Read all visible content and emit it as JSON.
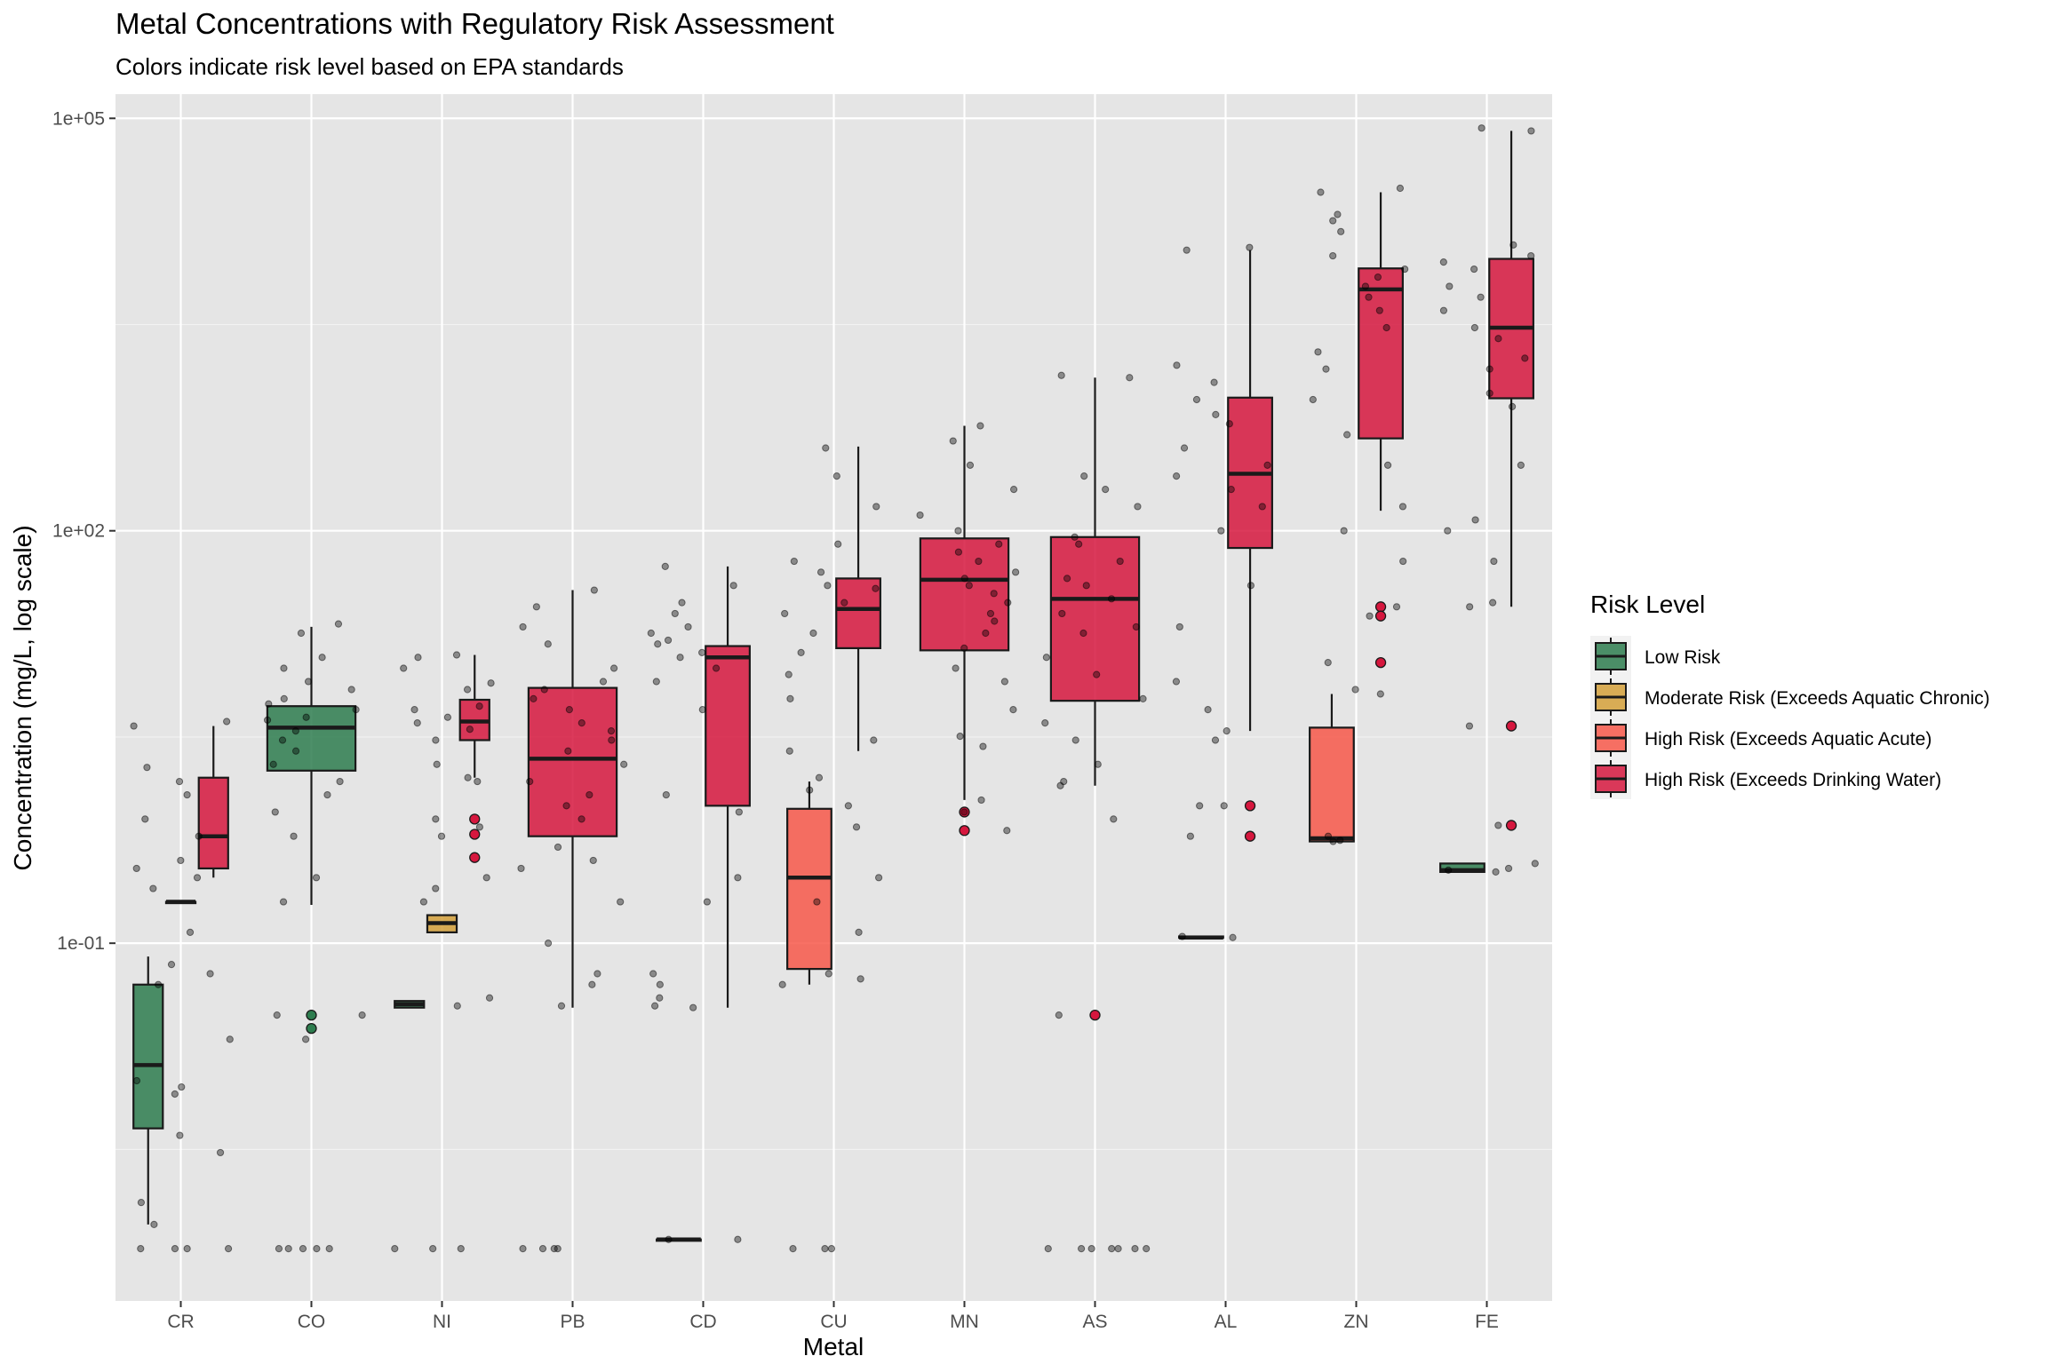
{
  "chart_data": {
    "type": "boxplot",
    "title": "Metal Concentrations with Regulatory Risk Assessment",
    "subtitle": "Colors indicate risk level based on EPA standards",
    "xlabel": "Metal",
    "ylabel": "Concentration (mg/L, log scale)",
    "y_scale": "log10",
    "ylim": [
      0.00025,
      150000
    ],
    "y_ticks": [
      0.1,
      100,
      100000
    ],
    "y_tick_labels": [
      "1e-01",
      "1e+02",
      "1e+05"
    ],
    "categories": [
      "CR",
      "CO",
      "NI",
      "PB",
      "CD",
      "CU",
      "MN",
      "AS",
      "AL",
      "ZN",
      "FE"
    ],
    "legend": {
      "title": "Risk Level",
      "position": "right",
      "items": [
        {
          "key": "low",
          "label": "Low Risk",
          "color": "#2E7D4F"
        },
        {
          "key": "moderate",
          "label": "Moderate Risk (Exceeds Aquatic Chronic)",
          "color": "#D4A03A"
        },
        {
          "key": "acute",
          "label": "High Risk (Exceeds Aquatic Acute)",
          "color": "#F7584A"
        },
        {
          "key": "drinking",
          "label": "High Risk (Exceeds Drinking Water)",
          "color": "#D6173E"
        }
      ]
    },
    "boxes": [
      {
        "metal": "CR",
        "risk": "low",
        "slot": 0,
        "slots": 3,
        "whisker_low": 0.0009,
        "q1": 0.0045,
        "median": 0.013,
        "q3": 0.05,
        "whisker_high": 0.08,
        "outliers": []
      },
      {
        "metal": "CR",
        "risk": "moderate",
        "slot": 1,
        "slots": 3,
        "whisker_low": 0.2,
        "q1": 0.2,
        "median": 0.2,
        "q3": 0.2,
        "whisker_high": 0.2,
        "outliers": []
      },
      {
        "metal": "CR",
        "risk": "drinking",
        "slot": 2,
        "slots": 3,
        "whisker_low": 0.3,
        "q1": 0.35,
        "median": 0.6,
        "q3": 1.6,
        "whisker_high": 3.8,
        "outliers": []
      },
      {
        "metal": "CO",
        "risk": "low",
        "slot": 0,
        "slots": 1,
        "whisker_low": 0.19,
        "q1": 1.8,
        "median": 3.7,
        "q3": 5.3,
        "whisker_high": 20,
        "outliers": [
          0.03,
          0.024
        ]
      },
      {
        "metal": "NI",
        "risk": "low",
        "slot": 0,
        "slots": 3,
        "whisker_low": 0.034,
        "q1": 0.034,
        "median": 0.036,
        "q3": 0.038,
        "whisker_high": 0.038,
        "outliers": []
      },
      {
        "metal": "NI",
        "risk": "moderate",
        "slot": 1,
        "slots": 3,
        "whisker_low": 0.12,
        "q1": 0.12,
        "median": 0.14,
        "q3": 0.16,
        "whisker_high": 0.16,
        "outliers": []
      },
      {
        "metal": "NI",
        "risk": "drinking",
        "slot": 2,
        "slots": 3,
        "whisker_low": 1.6,
        "q1": 3.0,
        "median": 4.1,
        "q3": 5.9,
        "whisker_high": 12.5,
        "outliers": [
          0.8,
          0.62,
          0.42
        ]
      },
      {
        "metal": "PB",
        "risk": "drinking",
        "slot": 0,
        "slots": 1,
        "whisker_low": 0.034,
        "q1": 0.6,
        "median": 2.2,
        "q3": 7.2,
        "whisker_high": 37,
        "outliers": []
      },
      {
        "metal": "CD",
        "risk": "low",
        "slot": 0,
        "slots": 2,
        "whisker_low": 0.0007,
        "q1": 0.0007,
        "median": 0.0007,
        "q3": 0.0007,
        "whisker_high": 0.0007,
        "outliers": []
      },
      {
        "metal": "CD",
        "risk": "drinking",
        "slot": 1,
        "slots": 2,
        "whisker_low": 0.034,
        "q1": 1.0,
        "median": 12,
        "q3": 14.5,
        "whisker_high": 55,
        "outliers": []
      },
      {
        "metal": "CU",
        "risk": "acute",
        "slot": 0,
        "slots": 2,
        "whisker_low": 0.05,
        "q1": 0.065,
        "median": 0.3,
        "q3": 0.95,
        "whisker_high": 1.5,
        "outliers": []
      },
      {
        "metal": "CU",
        "risk": "drinking",
        "slot": 1,
        "slots": 2,
        "whisker_low": 2.5,
        "q1": 14,
        "median": 27,
        "q3": 45,
        "whisker_high": 410,
        "outliers": []
      },
      {
        "metal": "MN",
        "risk": "drinking",
        "slot": 0,
        "slots": 1,
        "whisker_low": 1.1,
        "q1": 13.5,
        "median": 44,
        "q3": 88,
        "whisker_high": 580,
        "outliers": [
          0.9,
          0.66
        ]
      },
      {
        "metal": "AS",
        "risk": "drinking",
        "slot": 0,
        "slots": 1,
        "whisker_low": 1.4,
        "q1": 5.8,
        "median": 32,
        "q3": 90,
        "whisker_high": 1300,
        "outliers": [
          0.03
        ]
      },
      {
        "metal": "AL",
        "risk": "low",
        "slot": 0,
        "slots": 2,
        "whisker_low": 0.11,
        "q1": 0.11,
        "median": 0.11,
        "q3": 0.112,
        "whisker_high": 0.112,
        "outliers": []
      },
      {
        "metal": "AL",
        "risk": "drinking",
        "slot": 1,
        "slots": 2,
        "whisker_low": 3.5,
        "q1": 75,
        "median": 260,
        "q3": 930,
        "whisker_high": 11000,
        "outliers": [
          1.0,
          0.6
        ]
      },
      {
        "metal": "ZN",
        "risk": "acute",
        "slot": 0,
        "slots": 2,
        "whisker_low": 0.54,
        "q1": 0.55,
        "median": 0.58,
        "q3": 3.7,
        "whisker_high": 6.5,
        "outliers": []
      },
      {
        "metal": "ZN",
        "risk": "drinking",
        "slot": 1,
        "slots": 2,
        "whisker_low": 140,
        "q1": 470,
        "median": 5700,
        "q3": 8100,
        "whisker_high": 29000,
        "outliers": [
          28,
          24,
          11
        ]
      },
      {
        "metal": "FE",
        "risk": "low",
        "slot": 0,
        "slots": 2,
        "whisker_low": 0.33,
        "q1": 0.33,
        "median": 0.34,
        "q3": 0.38,
        "whisker_high": 0.38,
        "outliers": []
      },
      {
        "metal": "FE",
        "risk": "drinking",
        "slot": 1,
        "slots": 2,
        "whisker_low": 28,
        "q1": 920,
        "median": 3000,
        "q3": 9500,
        "whisker_high": 81000,
        "outliers": [
          3.8,
          0.72
        ]
      }
    ],
    "jitter_points": {
      "CR": [
        0.004,
        0.0006,
        0.0006,
        0.0009,
        0.008,
        0.009,
        0.01,
        0.003,
        0.12,
        0.07,
        0.05,
        0.06,
        0.3,
        0.35,
        0.4,
        0.25,
        0.6,
        0.8,
        1.2,
        1.5,
        1.9,
        3.8,
        4.1,
        0.02,
        0.0013,
        0.0006,
        0.0006
      ],
      "CO": [
        0.0006,
        0.0006,
        0.0006,
        0.0006,
        0.0006,
        0.03,
        0.03,
        0.02,
        0.2,
        0.3,
        0.6,
        0.9,
        1.5,
        2.5,
        3.5,
        4.2,
        5,
        6,
        7,
        8,
        10,
        12,
        18,
        21,
        1.2,
        2.0,
        3.0,
        4.4,
        5.5
      ],
      "NI": [
        0.0006,
        0.0006,
        0.0006,
        0.035,
        0.04,
        0.2,
        0.25,
        0.6,
        0.8,
        1.5,
        2,
        3,
        4,
        5,
        7,
        10,
        12,
        3.6,
        5.3,
        7.8,
        0.3,
        0.7,
        1.6,
        12.5,
        4.4
      ],
      "PB": [
        0.0006,
        0.0006,
        0.0006,
        0.0006,
        0.035,
        0.05,
        0.06,
        0.1,
        0.2,
        0.35,
        0.5,
        0.8,
        1,
        1.5,
        2,
        2.5,
        3,
        4,
        5,
        6,
        8,
        10,
        15,
        20,
        28,
        37,
        0.4,
        1.2,
        3.5,
        7
      ],
      "CD": [
        0.0007,
        0.0007,
        0.035,
        0.04,
        0.06,
        0.2,
        0.3,
        0.9,
        1.2,
        5,
        8,
        12,
        13,
        15,
        20,
        25,
        30,
        40,
        55,
        16,
        18,
        10,
        0.05,
        0.034
      ],
      "CU": [
        0.0006,
        0.0006,
        0.0006,
        0.05,
        0.055,
        0.06,
        0.12,
        0.2,
        0.3,
        0.7,
        1,
        1.3,
        1.6,
        2.5,
        3,
        6,
        9,
        13,
        18,
        25,
        30,
        40,
        50,
        80,
        150,
        250,
        400,
        60,
        38
      ],
      "MN": [
        1.1,
        0.9,
        0.66,
        2.7,
        3.2,
        5,
        8,
        10,
        14,
        18,
        22,
        30,
        40,
        50,
        60,
        80,
        100,
        130,
        200,
        300,
        580,
        450,
        25,
        35,
        45,
        70
      ],
      "AS": [
        0.0006,
        0.0006,
        0.0006,
        0.0006,
        0.0006,
        0.0006,
        0.0006,
        0.03,
        0.8,
        1.4,
        1.5,
        2,
        3,
        4,
        6,
        9,
        12,
        18,
        25,
        32,
        45,
        60,
        90,
        150,
        200,
        250,
        1300,
        1350,
        80,
        40,
        20
      ],
      "AL": [
        0.11,
        0.112,
        0.6,
        1.0,
        1.0,
        3.0,
        3.5,
        5,
        8,
        20,
        40,
        100,
        200,
        300,
        400,
        700,
        900,
        1200,
        1600,
        11000,
        11500,
        150,
        250,
        600
      ],
      "ZN": [
        0.55,
        0.56,
        0.6,
        6.5,
        7,
        11,
        24,
        28,
        60,
        100,
        150,
        300,
        500,
        900,
        1500,
        2000,
        4000,
        6000,
        8000,
        10000,
        15000,
        20000,
        29000,
        31000,
        5000,
        3000,
        7000,
        18000
      ],
      "FE": [
        0.33,
        0.34,
        0.35,
        0.38,
        0.72,
        3.8,
        28,
        30,
        60,
        100,
        120,
        300,
        800,
        1000,
        1500,
        2500,
        3000,
        4000,
        6000,
        8000,
        10000,
        12000,
        81000,
        85000,
        1800,
        5000,
        9000
      ]
    }
  }
}
